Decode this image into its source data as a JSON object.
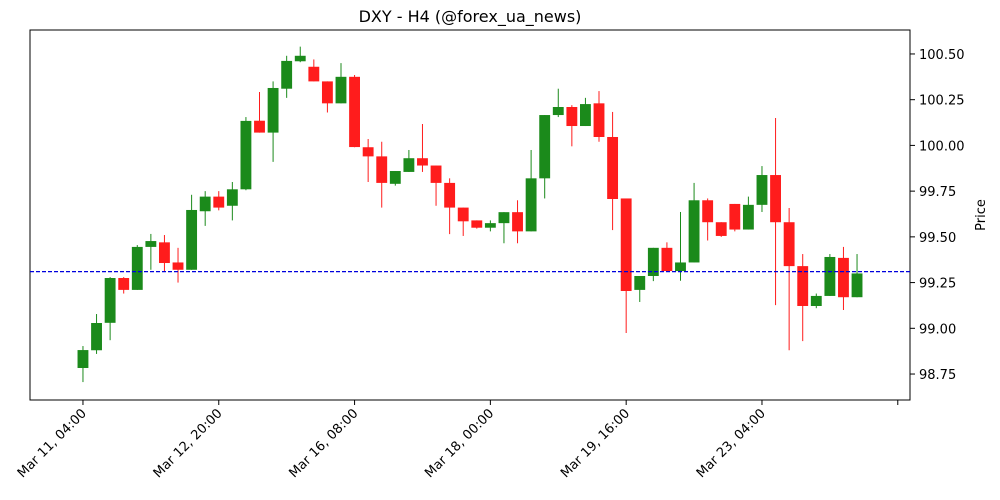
{
  "chart_data": {
    "type": "candlestick",
    "title": "DXY - H4 (@forex_ua_news)",
    "y_label": "Price",
    "open": [
      98.783,
      98.88,
      99.03,
      99.275,
      99.21,
      99.445,
      99.47,
      99.36,
      99.32,
      99.64,
      99.72,
      99.67,
      99.76,
      100.135,
      100.07,
      100.31,
      100.46,
      100.43,
      100.35,
      100.23,
      100.375,
      99.99,
      99.94,
      99.79,
      99.855,
      99.93,
      99.89,
      99.795,
      99.66,
      99.59,
      99.55,
      99.575,
      99.635,
      99.53,
      99.82,
      100.166,
      100.21,
      100.106,
      100.23,
      100.046,
      99.71,
      99.21,
      99.286,
      99.44,
      99.313,
      99.36,
      99.7,
      99.58,
      99.68,
      99.54,
      99.675,
      99.838,
      99.58,
      99.34,
      99.122,
      99.177,
      99.385,
      99.17
    ],
    "high": [
      98.903,
      99.078,
      99.28,
      99.28,
      99.455,
      99.516,
      99.51,
      99.44,
      99.73,
      99.75,
      99.75,
      99.8,
      100.155,
      100.292,
      100.35,
      100.49,
      100.54,
      100.47,
      100.35,
      100.45,
      100.385,
      100.035,
      100.02,
      99.86,
      99.975,
      100.117,
      99.89,
      99.82,
      99.66,
      99.59,
      99.59,
      99.635,
      99.7,
      99.975,
      100.166,
      100.31,
      100.22,
      100.26,
      100.297,
      100.183,
      99.71,
      99.286,
      99.44,
      99.47,
      99.636,
      99.795,
      99.71,
      99.58,
      99.68,
      99.72,
      99.887,
      100.15,
      99.658,
      99.406,
      99.19,
      99.406,
      99.445,
      99.406
    ],
    "low": [
      98.706,
      98.86,
      98.935,
      99.19,
      99.21,
      99.32,
      99.31,
      99.25,
      99.32,
      99.56,
      99.645,
      99.59,
      99.755,
      100.07,
      99.91,
      100.26,
      100.455,
      100.35,
      100.18,
      100.23,
      99.99,
      99.8,
      99.66,
      99.78,
      99.855,
      99.855,
      99.67,
      99.515,
      99.505,
      99.545,
      99.53,
      99.465,
      99.465,
      99.53,
      99.71,
      100.155,
      99.995,
      100.106,
      100.02,
      99.537,
      98.974,
      99.144,
      99.258,
      99.313,
      99.26,
      99.36,
      99.48,
      99.5,
      99.53,
      99.54,
      99.636,
      99.127,
      98.88,
      98.93,
      99.11,
      99.177,
      99.1,
      99.17
    ],
    "close": [
      98.881,
      99.029,
      99.275,
      99.21,
      99.445,
      99.477,
      99.357,
      99.32,
      99.647,
      99.72,
      99.66,
      99.76,
      100.134,
      100.07,
      100.314,
      100.462,
      100.49,
      100.35,
      100.23,
      100.375,
      99.991,
      99.94,
      99.795,
      99.86,
      99.93,
      99.89,
      99.795,
      99.66,
      99.585,
      99.55,
      99.575,
      99.635,
      99.53,
      99.82,
      100.166,
      100.21,
      100.106,
      100.226,
      100.046,
      99.707,
      99.204,
      99.286,
      99.44,
      99.313,
      99.36,
      99.7,
      99.58,
      99.505,
      99.54,
      99.675,
      99.838,
      99.58,
      99.34,
      99.122,
      99.177,
      99.39,
      99.17,
      99.3
    ],
    "up_color": "#1b8a1b",
    "down_color": "#ff1c1c",
    "hline": 99.31,
    "hline_color": "#0000dd",
    "xlim": [
      -3.9,
      60.9
    ],
    "xticks": [
      {
        "value": 0,
        "label": "Mar 11, 04:00"
      },
      {
        "value": 10,
        "label": "Mar 12, 20:00"
      },
      {
        "value": 20,
        "label": "Mar 16, 08:00"
      },
      {
        "value": 30,
        "label": "Mar 18, 00:00"
      },
      {
        "value": 40,
        "label": "Mar 19, 16:00"
      },
      {
        "value": 50,
        "label": "Mar 23, 04:00"
      },
      {
        "value": 60,
        "label": null
      }
    ],
    "ylim": [
      98.608,
      100.631
    ],
    "yticks": [
      98.75,
      {
        "value": 99,
        "label": "99.00"
      },
      99.25,
      {
        "value": 99.5,
        "label": "99.50"
      },
      99.75,
      {
        "value": 100,
        "label": "100.00"
      },
      100.25,
      {
        "value": 100.5,
        "label": "100.50"
      }
    ]
  }
}
